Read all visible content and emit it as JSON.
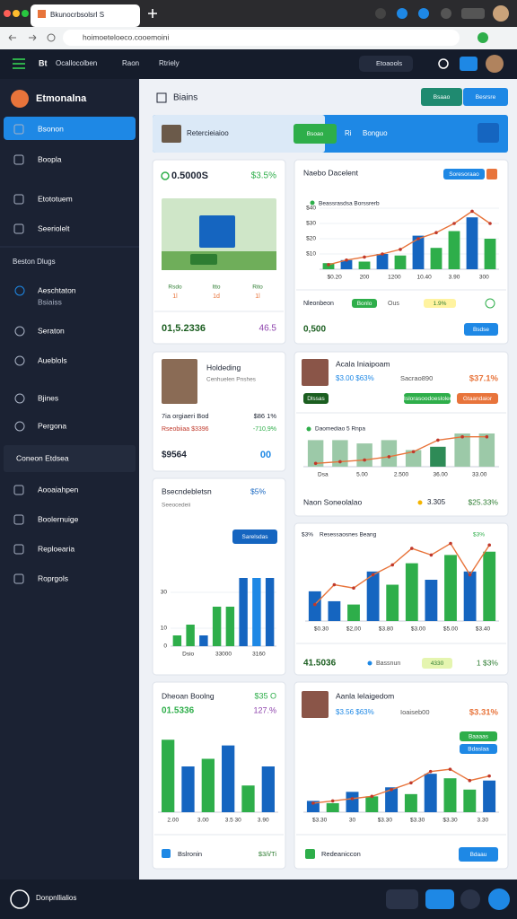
{
  "browser": {
    "tab_title": "Bkunocrbsolsrl S",
    "url": "hoimoeteloeco.cooemoini"
  },
  "topbar": {
    "brand": "Bt",
    "nav": [
      "Ocallocolben",
      "Raon",
      "Rtriely"
    ],
    "search": "Etoaools"
  },
  "sidebar": {
    "brand": "Etmonalna",
    "items": [
      "Bsonon",
      "Boopla",
      "Etototuem",
      "Seeriolelt"
    ],
    "section": "Beston Dlugs",
    "items2": [
      [
        "Aeschtaton",
        "Bsiaiss"
      ],
      [
        "Seraton"
      ],
      [
        "Aueblols"
      ],
      [
        "Bjines"
      ],
      [
        "Pergona"
      ]
    ],
    "section2": "Coneon Etdsea",
    "items3": [
      "Aooaiahpen",
      "Boolernuige",
      "Reploearia",
      "Roprgols"
    ],
    "footer": "Donpnllialios"
  },
  "header": {
    "title": "Biains",
    "buttons": [
      "Bsaao",
      "Besrsre"
    ]
  },
  "banner": {
    "left": "Retercieiaioo",
    "button": "Bsoao",
    "icon_text": "Ri",
    "right": "Bonguo"
  },
  "cards": [
    {
      "value": "0.5000S",
      "delta": "$3.5%",
      "labels": [
        [
          "Rsdo",
          "1l"
        ],
        [
          "Itto",
          "1d"
        ],
        [
          "Rito",
          "1l"
        ]
      ],
      "footer_value": "01,5.2336",
      "footer_delta": "46.5"
    },
    {
      "title": "Holdeding",
      "subtitle": "Cenhuelen Pnshes",
      "rows": [
        [
          "7ia orgiaeri Bod",
          "$86 1%"
        ],
        [
          "Rseobiiaa $3396",
          "-710,9%"
        ]
      ],
      "footer_value": "$9564",
      "footer_icon": "00"
    },
    {
      "title": "Bsecndebletsn",
      "delta": "$5%",
      "subtitle": "Seeocedeii",
      "button": "Sarelsdas",
      "chart": {
        "bars": [
          6,
          12,
          6,
          22,
          22,
          38,
          38,
          38
        ],
        "colors": [
          "#2eae4a",
          "#2eae4a",
          "#1565c0",
          "#2eae4a",
          "#2eae4a",
          "#1565c0",
          "#1e88e5",
          "#1565c0"
        ],
        "ylim": [
          0,
          40
        ],
        "yticks": [
          0,
          10,
          30
        ],
        "xlabels": [
          "Dsio",
          "33000",
          "3160"
        ]
      }
    },
    {
      "title": "Dheoan Boolng",
      "delta": "$35 O",
      "value": "01.5336",
      "delta2": "127.%",
      "chart": {
        "bars": [
          38,
          24,
          28,
          35,
          14,
          24
        ],
        "colors": [
          "#2eae4a",
          "#1565c0",
          "#2eae4a",
          "#1565c0",
          "#2eae4a",
          "#1565c0"
        ],
        "ylim": [
          0,
          40
        ],
        "xlabels": [
          "2.00",
          "3.00",
          "3.5 30",
          "3.90"
        ]
      },
      "footer_text": "Bslronin",
      "footer_right": "$3/i/Ti"
    },
    {
      "title": "Naebo Dacelent",
      "badge": "Soresoraao",
      "legend": "Beassrasdsa Borssrerb",
      "chart": {
        "bars": [
          4,
          6,
          5,
          10,
          9,
          22,
          14,
          25,
          34,
          20
        ],
        "colors": [
          "#2eae4a",
          "#1565c0",
          "#2eae4a",
          "#1565c0",
          "#2eae4a",
          "#1565c0",
          "#2eae4a",
          "#2eae4a",
          "#1565c0",
          "#2eae4a"
        ],
        "line": [
          3,
          6,
          8,
          10,
          13,
          20,
          24,
          30,
          38,
          30
        ],
        "ylim": [
          0,
          40
        ],
        "yticks": [
          {
            "value": 10,
            "label": "$10"
          },
          {
            "value": 20,
            "label": "$20"
          },
          {
            "value": 30,
            "label": "$30"
          },
          {
            "value": 40,
            "label": "$40"
          }
        ],
        "xlabels": [
          "$0.20",
          "200",
          "1200",
          "10.40",
          "3.90",
          "300"
        ]
      },
      "footer_label": "Nleonbeon",
      "footer_badge": "Bonlo",
      "footer_mid": "Ous",
      "footer_badge2": "1.9%",
      "footer_value": "0,500",
      "button": "Bsdse"
    },
    {
      "title": "Acala Iniaipoam",
      "sub": "$3.00 $63%",
      "mid": "Sacrao890",
      "delta": "$37.1%",
      "badges": [
        "Dlssas",
        "Bslorasoodoeslolen",
        "Gtaandaior"
      ],
      "legend": "Daomediao 5 Rnpa",
      "chart": {
        "bars": [
          16,
          16,
          14,
          16,
          10,
          12,
          20,
          20
        ],
        "colors": [
          "#9cc9a8",
          "#9cc9a8",
          "#9cc9a8",
          "#9cc9a8",
          "#9cc9a8",
          "#2e8b57",
          "#9cc9a8",
          "#9cc9a8"
        ],
        "line": [
          2,
          3,
          4,
          6,
          9,
          16,
          18,
          18
        ],
        "ylim": [
          0,
          20
        ],
        "xlabels": [
          "Dsa",
          "5.00",
          "2.500",
          "36.00",
          "33.00"
        ]
      },
      "footer_title": "Naon Soneolalao",
      "footer_mid": "3.305",
      "footer_right": "$25.33%"
    },
    {
      "header_left": "$3%",
      "header_mid": "Resessaosnes Beang",
      "header_right": "$3%",
      "chart": {
        "bars": [
          18,
          12,
          10,
          30,
          22,
          35,
          25,
          40,
          30,
          42
        ],
        "colors": [
          "#1565c0",
          "#1565c0",
          "#2eae4a",
          "#1565c0",
          "#2eae4a",
          "#2eae4a",
          "#1565c0",
          "#2eae4a",
          "#1565c0",
          "#2eae4a"
        ],
        "line": [
          10,
          22,
          20,
          28,
          34,
          44,
          40,
          47,
          28,
          46
        ],
        "ylim": [
          0,
          50
        ],
        "xlabels": [
          "$0.30",
          "$2,00",
          "$3.80",
          "$3.00",
          "$5.00",
          "$3.40"
        ]
      },
      "footer_value": "41.5036",
      "footer_badge": "Bassnun",
      "footer_badge2": "4330",
      "footer_right": "1 $3%"
    },
    {
      "title": "Aanla lelaigedom",
      "sub": "$3.56 $63%",
      "mid": "Ioaiseb00",
      "delta": "$3.31%",
      "badges": [
        "Baaaas",
        "Bdaslaa"
      ],
      "chart": {
        "bars": [
          10,
          8,
          18,
          14,
          22,
          16,
          34,
          30,
          20,
          28
        ],
        "colors": [
          "#1565c0",
          "#2eae4a",
          "#1565c0",
          "#2eae4a",
          "#1565c0",
          "#2eae4a",
          "#1565c0",
          "#2eae4a",
          "#2eae4a",
          "#1565c0"
        ],
        "line": [
          8,
          10,
          12,
          14,
          20,
          26,
          36,
          38,
          28,
          32
        ],
        "ylim": [
          0,
          50
        ],
        "xlabels": [
          "$3.30",
          "30",
          "$3.30",
          "$3.30",
          "$3.30",
          "3.30"
        ]
      },
      "footer_text": "Redeaniccon",
      "button": "Bdaau"
    }
  ]
}
